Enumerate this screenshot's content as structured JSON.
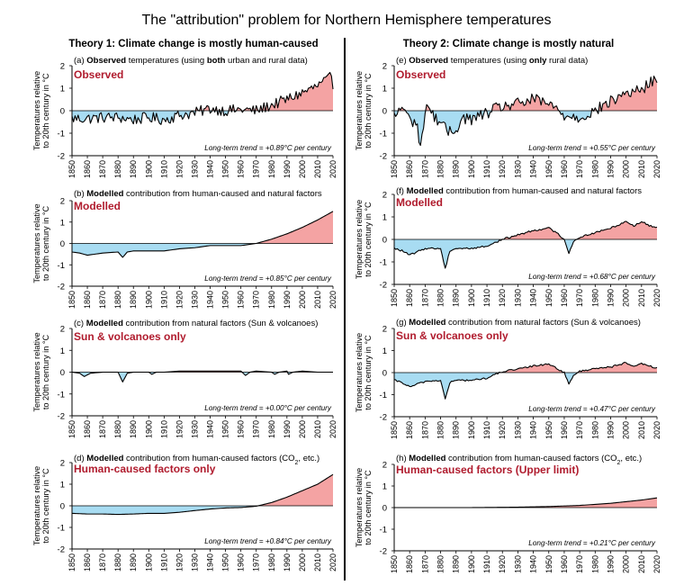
{
  "title": "The \"attribution\" problem for Northern Hemisphere temperatures",
  "columns": [
    {
      "heading": "Theory 1: Climate change is mostly human-caused"
    },
    {
      "heading": "Theory 2: Climate change is mostly natural"
    }
  ],
  "colors": {
    "positive_fill": "#f4a3a3",
    "negative_fill": "#a8dcf2",
    "label_red": "#b01c2e",
    "line": "#000000"
  },
  "chart_data": [
    {
      "id": "a",
      "type": "area",
      "caption_prefix": "(a) ",
      "caption_bold": "Observed",
      "caption_mid": " temperatures (using ",
      "caption_bold2": "both",
      "caption_rest": " urban and rural data)",
      "label": "Observed",
      "ylabel": "Temperatures relative to 20th century in °C",
      "ylabel_lines": [
        "Temperatures relative",
        "to 20th century in °C"
      ],
      "xlim": [
        1850,
        2020
      ],
      "ylim": [
        -2,
        2
      ],
      "yticks": [
        "2",
        "1",
        "0",
        "-1",
        "-2"
      ],
      "xticks": [
        "1850",
        "1860",
        "1870",
        "1880",
        "1890",
        "1900",
        "1910",
        "1920",
        "1930",
        "1940",
        "1950",
        "1960",
        "1970",
        "1980",
        "1990",
        "2000",
        "2010",
        "2020"
      ],
      "trend_text": "Long-term trend = +0.89°C per century",
      "pattern": "observed_all",
      "x": [
        1850,
        1860,
        1870,
        1880,
        1890,
        1900,
        1910,
        1920,
        1930,
        1940,
        1950,
        1960,
        1970,
        1980,
        1990,
        2000,
        2010,
        2018,
        2020
      ],
      "y": [
        -0.35,
        -0.35,
        -0.3,
        -0.3,
        -0.4,
        -0.3,
        -0.4,
        -0.2,
        -0.1,
        0.1,
        0.0,
        0.05,
        0.0,
        0.25,
        0.5,
        0.8,
        1.1,
        1.45,
        1.2
      ]
    },
    {
      "id": "b",
      "type": "area",
      "caption_prefix": "(b) ",
      "caption_bold": "Modelled",
      "caption_mid": " contribution from human-caused and natural factors",
      "caption_bold2": "",
      "caption_rest": "",
      "label": "Modelled",
      "ylabel": "Temperatures relative to 20th century in °C",
      "ylabel_lines": [
        "Temperatures relative",
        "to 20th century in °C"
      ],
      "xlim": [
        1850,
        2020
      ],
      "ylim": [
        -2,
        2
      ],
      "yticks": [
        "2",
        "1",
        "0",
        "-1",
        "-2"
      ],
      "xticks": [
        "1850",
        "1860",
        "1870",
        "1880",
        "1890",
        "1900",
        "1910",
        "1920",
        "1930",
        "1940",
        "1950",
        "1960",
        "1970",
        "1980",
        "1990",
        "2000",
        "2010",
        "2020"
      ],
      "trend_text": "Long-term trend = +0.85°C per century",
      "pattern": "smooth",
      "x": [
        1850,
        1855,
        1860,
        1870,
        1880,
        1883,
        1886,
        1890,
        1900,
        1910,
        1920,
        1930,
        1940,
        1950,
        1960,
        1970,
        1980,
        1990,
        2000,
        2010,
        2020
      ],
      "y": [
        -0.4,
        -0.45,
        -0.55,
        -0.45,
        -0.4,
        -0.65,
        -0.4,
        -0.35,
        -0.35,
        -0.35,
        -0.25,
        -0.2,
        -0.1,
        -0.1,
        -0.1,
        0.0,
        0.2,
        0.45,
        0.75,
        1.1,
        1.5
      ]
    },
    {
      "id": "c",
      "type": "area",
      "caption_prefix": "(c) ",
      "caption_bold": "Modelled",
      "caption_mid": " contribution from natural factors (Sun & volcanoes)",
      "caption_bold2": "",
      "caption_rest": "",
      "label": "Sun & volcanoes only",
      "ylabel": "Temperatures relative to 20th century in °C",
      "ylabel_lines": [
        "Temperatures relative",
        "to 20th century in °C"
      ],
      "xlim": [
        1850,
        2020
      ],
      "ylim": [
        -2,
        2
      ],
      "yticks": [
        "2",
        "1",
        "0",
        "-1",
        "-2"
      ],
      "xticks": [
        "1850",
        "1860",
        "1870",
        "1880",
        "1890",
        "1900",
        "1910",
        "1920",
        "1930",
        "1940",
        "1950",
        "1960",
        "1970",
        "1980",
        "1990",
        "2000",
        "2010",
        "2020"
      ],
      "trend_text": "Long-term trend = +0.00°C per century",
      "pattern": "smooth",
      "x": [
        1850,
        1855,
        1858,
        1862,
        1870,
        1880,
        1883,
        1886,
        1890,
        1900,
        1902,
        1905,
        1910,
        1920,
        1930,
        1940,
        1950,
        1960,
        1963,
        1966,
        1970,
        1980,
        1982,
        1985,
        1990,
        1991,
        1994,
        2000,
        2010,
        2020
      ],
      "y": [
        0.0,
        -0.05,
        -0.2,
        -0.05,
        0.0,
        0.0,
        -0.45,
        -0.05,
        0.0,
        0.0,
        -0.1,
        0.0,
        0.0,
        0.05,
        0.05,
        0.05,
        0.05,
        0.05,
        -0.15,
        0.0,
        0.05,
        0.0,
        -0.1,
        0.0,
        0.05,
        -0.1,
        0.0,
        0.05,
        0.0,
        0.0
      ]
    },
    {
      "id": "d",
      "type": "area",
      "caption_prefix": "(d) ",
      "caption_bold": "Modelled",
      "caption_mid": " contribution from human-caused factors (CO",
      "caption_bold2": "",
      "caption_rest": ", etc.)",
      "caption_sub": "2",
      "label": "Human-caused factors only",
      "ylabel": "Temperatures relative to 20th century in °C",
      "ylabel_lines": [
        "Temperatures relative",
        "to 20th century in °C"
      ],
      "xlim": [
        1850,
        2020
      ],
      "ylim": [
        -2,
        2
      ],
      "yticks": [
        "2",
        "1",
        "0",
        "-1",
        "-2"
      ],
      "xticks": [
        "1850",
        "1860",
        "1870",
        "1880",
        "1890",
        "1900",
        "1910",
        "1920",
        "1930",
        "1940",
        "1950",
        "1960",
        "1970",
        "1980",
        "1990",
        "2000",
        "2010",
        "2020"
      ],
      "trend_text": "Long-term trend = +0.84°C per century",
      "pattern": "smooth",
      "x": [
        1850,
        1860,
        1870,
        1880,
        1890,
        1900,
        1910,
        1920,
        1930,
        1940,
        1950,
        1960,
        1970,
        1980,
        1990,
        2000,
        2010,
        2020
      ],
      "y": [
        -0.35,
        -0.38,
        -0.38,
        -0.4,
        -0.38,
        -0.35,
        -0.35,
        -0.3,
        -0.22,
        -0.15,
        -0.1,
        -0.08,
        -0.02,
        0.15,
        0.4,
        0.7,
        1.0,
        1.45
      ]
    },
    {
      "id": "e",
      "type": "area",
      "caption_prefix": "(e) ",
      "caption_bold": "Observed",
      "caption_mid": " temperatures (using ",
      "caption_bold2": "only",
      "caption_rest": " rural data)",
      "label": "Observed",
      "ylabel": "Temperatures relative to 20th century in °C",
      "ylabel_lines": [
        "Temperatures relative",
        "to 20th century in °C"
      ],
      "xlim": [
        1850,
        2020
      ],
      "ylim": [
        -2,
        2
      ],
      "yticks": [
        "2",
        "1",
        "0",
        "-1",
        "-2"
      ],
      "xticks": [
        "1850",
        "1860",
        "1870",
        "1880",
        "1890",
        "1900",
        "1910",
        "1920",
        "1930",
        "1940",
        "1950",
        "1960",
        "1970",
        "1980",
        "1990",
        "2000",
        "2010",
        "2020"
      ],
      "trend_text": "Long-term trend = +0.55°C per century",
      "pattern": "observed_rural",
      "x": [
        1850,
        1855,
        1860,
        1865,
        1867,
        1869,
        1871,
        1875,
        1880,
        1885,
        1890,
        1895,
        1900,
        1910,
        1920,
        1930,
        1940,
        1950,
        1960,
        1970,
        1980,
        1990,
        2000,
        2010,
        2018,
        2020
      ],
      "y": [
        -0.3,
        0.2,
        -0.4,
        -0.6,
        -1.8,
        -0.5,
        0.3,
        -0.2,
        -0.5,
        -1.0,
        -0.8,
        -0.3,
        -0.4,
        -0.1,
        0.2,
        0.3,
        0.5,
        0.3,
        -0.2,
        -0.3,
        0.0,
        0.4,
        0.8,
        0.9,
        1.4,
        1.0
      ]
    },
    {
      "id": "f",
      "type": "area",
      "caption_prefix": "(f) ",
      "caption_bold": "Modelled",
      "caption_mid": " contribution from human-caused and natural factors",
      "caption_bold2": "",
      "caption_rest": "",
      "label": "Modelled",
      "ylabel": "Temperatures relative to 20th century in °C",
      "ylabel_lines": [
        "Temperatures relative",
        "to 20th century in °C"
      ],
      "xlim": [
        1850,
        2020
      ],
      "ylim": [
        -2,
        2
      ],
      "yticks": [
        "2",
        "1",
        "0",
        "-1",
        "-2"
      ],
      "xticks": [
        "1850",
        "1860",
        "1870",
        "1880",
        "1890",
        "1900",
        "1910",
        "1920",
        "1930",
        "1940",
        "1950",
        "1960",
        "1970",
        "1980",
        "1990",
        "2000",
        "2010",
        "2020"
      ],
      "trend_text": "Long-term trend = +0.68°C per century",
      "pattern": "modelled_natural",
      "x": [
        1850,
        1855,
        1860,
        1870,
        1880,
        1883,
        1886,
        1890,
        1900,
        1910,
        1920,
        1930,
        1940,
        1950,
        1955,
        1960,
        1963,
        1966,
        1970,
        1980,
        1990,
        2000,
        2005,
        2010,
        2015,
        2020
      ],
      "y": [
        -0.4,
        -0.5,
        -0.7,
        -0.4,
        -0.4,
        -1.3,
        -0.5,
        -0.4,
        -0.4,
        -0.3,
        0.0,
        0.2,
        0.4,
        0.5,
        0.3,
        0.0,
        -0.6,
        -0.1,
        0.1,
        0.3,
        0.5,
        0.8,
        0.6,
        0.8,
        0.6,
        0.55
      ]
    },
    {
      "id": "g",
      "type": "area",
      "caption_prefix": "(g) ",
      "caption_bold": "Modelled",
      "caption_mid": " contribution from natural factors (Sun & volcanoes)",
      "caption_bold2": "",
      "caption_rest": "",
      "label": "Sun & volcanoes only",
      "ylabel": "Temperatures relative to 20th century in °C",
      "ylabel_lines": [
        "Temperatures relative",
        "to 20th century in °C"
      ],
      "xlim": [
        1850,
        2020
      ],
      "ylim": [
        -2,
        2
      ],
      "yticks": [
        "2",
        "1",
        "0",
        "-1",
        "-2"
      ],
      "xticks": [
        "1850",
        "1860",
        "1870",
        "1880",
        "1890",
        "1900",
        "1910",
        "1920",
        "1930",
        "1940",
        "1950",
        "1960",
        "1970",
        "1980",
        "1990",
        "2000",
        "2010",
        "2020"
      ],
      "trend_text": "Long-term trend = +0.47°C per century",
      "pattern": "modelled_natural",
      "x": [
        1850,
        1855,
        1860,
        1870,
        1880,
        1883,
        1886,
        1890,
        1900,
        1910,
        1920,
        1930,
        1940,
        1950,
        1955,
        1960,
        1963,
        1966,
        1970,
        1980,
        1990,
        2000,
        2005,
        2010,
        2015,
        2020
      ],
      "y": [
        -0.35,
        -0.45,
        -0.65,
        -0.4,
        -0.35,
        -1.2,
        -0.45,
        -0.35,
        -0.35,
        -0.25,
        0.05,
        0.15,
        0.3,
        0.4,
        0.2,
        0.0,
        -0.55,
        -0.1,
        0.05,
        0.2,
        0.25,
        0.45,
        0.25,
        0.4,
        0.3,
        0.2
      ]
    },
    {
      "id": "h",
      "type": "area",
      "caption_prefix": "(h) ",
      "caption_bold": "Modelled",
      "caption_mid": " contribution from human-caused factors (CO",
      "caption_bold2": "",
      "caption_rest": ", etc.)",
      "caption_sub": "2",
      "label": "Human-caused factors (Upper limit)",
      "ylabel": "Temperatures relative to 20th century in °C",
      "ylabel_lines": [
        "Temperatures relative",
        "to 20th century in °C"
      ],
      "xlim": [
        1850,
        2020
      ],
      "ylim": [
        -2,
        2
      ],
      "yticks": [
        "2",
        "1",
        "0",
        "-1",
        "-2"
      ],
      "xticks": [
        "1850",
        "1860",
        "1870",
        "1880",
        "1890",
        "1900",
        "1910",
        "1920",
        "1930",
        "1940",
        "1950",
        "1960",
        "1970",
        "1980",
        "1990",
        "2000",
        "2010",
        "2020"
      ],
      "trend_text": "Long-term trend = +0.21°C per century",
      "pattern": "smooth",
      "x": [
        1850,
        1900,
        1930,
        1950,
        1970,
        1990,
        2010,
        2020
      ],
      "y": [
        0.0,
        0.0,
        0.02,
        0.05,
        0.1,
        0.2,
        0.35,
        0.45
      ]
    }
  ]
}
